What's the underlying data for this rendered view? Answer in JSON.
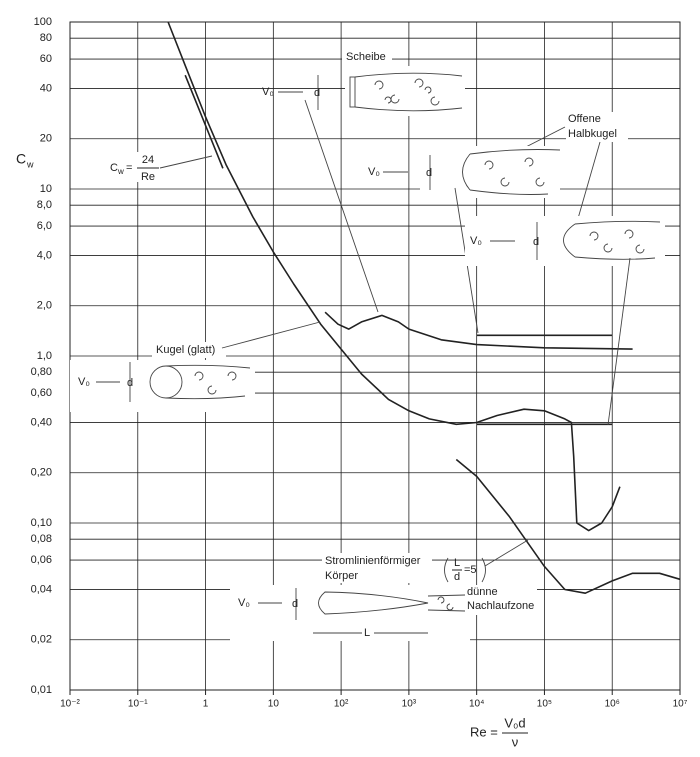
{
  "chart_data": {
    "type": "line",
    "x_label": {
      "lhs": "Re =",
      "numerator": "V₀d",
      "denominator": "ν"
    },
    "y_label": {
      "symbol": "C",
      "subscript": "w"
    },
    "xscale": "log",
    "yscale": "log",
    "grid": true,
    "xlim": [
      0.01,
      10000000
    ],
    "ylim": [
      0.01,
      100
    ],
    "xticks": [
      {
        "value": 0.01,
        "label": "10⁻²"
      },
      {
        "value": 0.1,
        "label": "10⁻¹"
      },
      1,
      10,
      {
        "value": 100,
        "label": "10²"
      },
      {
        "value": 1000,
        "label": "10³"
      },
      {
        "value": 10000,
        "label": "10⁴"
      },
      {
        "value": 100000,
        "label": "10⁵"
      },
      {
        "value": 1000000,
        "label": "10⁶"
      },
      {
        "value": 10000000,
        "label": "10⁷"
      }
    ],
    "yticks": [
      100,
      80,
      60,
      40,
      20,
      10,
      {
        "value": 8,
        "label": "8,0"
      },
      {
        "value": 6,
        "label": "6,0"
      },
      {
        "value": 4,
        "label": "4,0"
      },
      {
        "value": 2,
        "label": "2,0"
      },
      {
        "value": 1,
        "label": "1,0"
      },
      {
        "value": 0.8,
        "label": "0,80"
      },
      {
        "value": 0.6,
        "label": "0,60"
      },
      {
        "value": 0.4,
        "label": "0,40"
      },
      {
        "value": 0.2,
        "label": "0,20"
      },
      {
        "value": 0.1,
        "label": "0,10"
      },
      {
        "value": 0.08,
        "label": "0,08"
      },
      {
        "value": 0.06,
        "label": "0,06"
      },
      {
        "value": 0.04,
        "label": "0,04"
      },
      {
        "value": 0.02,
        "label": "0,02"
      },
      {
        "value": 0.01,
        "label": "0,01"
      }
    ],
    "series": [
      {
        "name": "Kugel (glatt)",
        "color": "#222222",
        "x": [
          0.28,
          0.5,
          1,
          2,
          5,
          10,
          20,
          50,
          100,
          200,
          500,
          1000,
          2000,
          5000,
          10000,
          20000,
          50000,
          100000,
          200000,
          250000,
          270000,
          300000,
          450000,
          700000,
          1000000,
          1300000
        ],
        "values": [
          100,
          55,
          27,
          14,
          6.8,
          4.2,
          2.7,
          1.55,
          1.1,
          0.78,
          0.55,
          0.47,
          0.42,
          0.39,
          0.4,
          0.44,
          0.48,
          0.47,
          0.42,
          0.4,
          0.25,
          0.1,
          0.09,
          0.1,
          0.125,
          0.165
        ]
      },
      {
        "name": "Scheibe",
        "color": "#222222",
        "x": [
          58,
          90,
          130,
          200,
          400,
          700,
          1000,
          3000,
          10000,
          100000,
          2000000
        ],
        "values": [
          1.83,
          1.55,
          1.45,
          1.6,
          1.75,
          1.6,
          1.45,
          1.25,
          1.17,
          1.12,
          1.1
        ]
      },
      {
        "name": "Offene Halbkugel",
        "color": "#222222",
        "x": [
          10000,
          1000000
        ],
        "values": [
          1.33,
          1.33
        ]
      },
      {
        "color": "#222222",
        "x": [
          10000,
          1000000
        ],
        "values": [
          0.39,
          0.39
        ]
      },
      {
        "name": "Stromlinienförmiger Körper",
        "color": "#222222",
        "x": [
          5000,
          10000,
          30000,
          100000,
          200000,
          400000,
          1000000,
          2000000,
          5000000,
          10000000
        ],
        "values": [
          0.24,
          0.19,
          0.11,
          0.055,
          0.04,
          0.038,
          0.045,
          0.05,
          0.05,
          0.046
        ]
      },
      {
        "color": "#222222",
        "x": [
          0.5,
          1.8
        ],
        "values": [
          48,
          13.3
        ]
      }
    ],
    "annotations": {
      "disk": "Scheibe",
      "hemisphere_1": "Offene",
      "hemisphere_2": "Halbkugel",
      "sphere": "Kugel (glatt)",
      "body_1": "Stromlinienförmiger",
      "body_2": "Körper",
      "wake_1": "dünne",
      "wake_2": "Nachlaufzone",
      "stokes": {
        "symbol": "C",
        "subscript": "w",
        "eq": "=",
        "numerator": "24",
        "denominator": "Re"
      },
      "ratio": {
        "numerator": "L",
        "denominator": "d",
        "rhs": "=5"
      },
      "velocity": "V₀",
      "diameter": "d",
      "length": "L"
    }
  }
}
